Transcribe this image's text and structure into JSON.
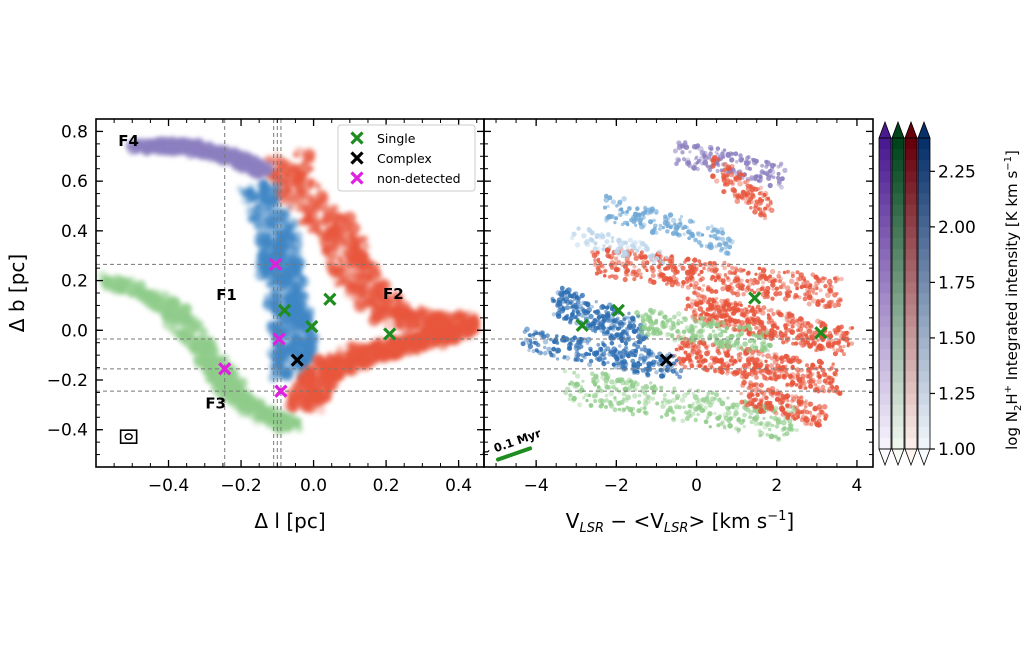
{
  "chart_data": [
    {
      "type": "scatter",
      "panel": "left",
      "xlabel": "Δ l [pc]",
      "ylabel": "Δ b [pc]",
      "xlim": [
        -0.6,
        0.47
      ],
      "ylim": [
        -0.55,
        0.85
      ],
      "xticks": [
        -0.4,
        -0.2,
        0.0,
        0.2,
        0.4
      ],
      "xtick_labels": [
        "−0.4",
        "−0.2",
        "0.0",
        "0.2",
        "0.4"
      ],
      "yticks": [
        -0.4,
        -0.2,
        0.0,
        0.2,
        0.4,
        0.6,
        0.8
      ],
      "ytick_labels": [
        "−0.4",
        "−0.2",
        "0.0",
        "0.2",
        "0.4",
        "0.6",
        "0.8"
      ],
      "legend_position": "top-right",
      "legend": [
        {
          "name": "Single",
          "color": "#1e8c1e"
        },
        {
          "name": "Complex",
          "color": "#000000"
        },
        {
          "name": "non-detected",
          "color": "#e020e0"
        }
      ],
      "filament_labels": [
        {
          "text": "F4",
          "x": -0.51,
          "y": 0.765
        },
        {
          "text": "F1",
          "x": -0.24,
          "y": 0.145
        },
        {
          "text": "F2",
          "x": 0.22,
          "y": 0.15
        },
        {
          "text": "F3",
          "x": -0.27,
          "y": -0.29
        }
      ],
      "filaments": [
        {
          "name": "F1",
          "color": "#3f86c5",
          "path": [
            [
              -0.15,
              0.58
            ],
            [
              -0.1,
              0.4
            ],
            [
              -0.1,
              0.3
            ],
            [
              -0.08,
              0.2
            ],
            [
              -0.07,
              0.08
            ],
            [
              -0.05,
              -0.06
            ],
            [
              -0.07,
              -0.18
            ]
          ],
          "width": 0.11
        },
        {
          "name": "F2",
          "color": "#e8553c",
          "path": [
            [
              -0.08,
              0.7
            ],
            [
              -0.02,
              0.52
            ],
            [
              0.08,
              0.35
            ],
            [
              0.12,
              0.2
            ],
            [
              0.22,
              0.06
            ],
            [
              0.36,
              0.02
            ],
            [
              0.4,
              0.03
            ]
          ],
          "width": 0.12
        },
        {
          "name": "F2",
          "color": "#e8553c",
          "path": [
            [
              0.4,
              0.0
            ],
            [
              0.25,
              -0.06
            ],
            [
              0.12,
              -0.1
            ],
            [
              0.02,
              -0.18
            ],
            [
              -0.03,
              -0.3
            ]
          ],
          "width": 0.1
        },
        {
          "name": "F3",
          "color": "#8fcc8a",
          "path": [
            [
              -0.56,
              0.2
            ],
            [
              -0.4,
              0.1
            ],
            [
              -0.32,
              -0.05
            ],
            [
              -0.26,
              -0.16
            ],
            [
              -0.22,
              -0.26
            ],
            [
              -0.14,
              -0.33
            ],
            [
              -0.06,
              -0.38
            ]
          ],
          "width": 0.07
        },
        {
          "name": "F4",
          "color": "#8c7fc0",
          "path": [
            [
              -0.48,
              0.74
            ],
            [
              -0.36,
              0.74
            ],
            [
              -0.22,
              0.7
            ],
            [
              -0.14,
              0.64
            ]
          ],
          "width": 0.06
        }
      ],
      "hlines": [
        0.265,
        -0.035,
        -0.155,
        -0.245
      ],
      "vlines": [
        -0.245,
        -0.11,
        -0.1,
        -0.09
      ],
      "points": [
        {
          "category": "Single",
          "x": -0.08,
          "y": 0.08
        },
        {
          "category": "Single",
          "x": -0.005,
          "y": 0.015
        },
        {
          "category": "Single",
          "x": 0.045,
          "y": 0.125
        },
        {
          "category": "Single",
          "x": 0.21,
          "y": -0.015
        },
        {
          "category": "Complex",
          "x": -0.045,
          "y": -0.12
        },
        {
          "category": "non-detected",
          "x": -0.105,
          "y": 0.265
        },
        {
          "category": "non-detected",
          "x": -0.095,
          "y": -0.035
        },
        {
          "category": "non-detected",
          "x": -0.245,
          "y": -0.155
        },
        {
          "category": "non-detected",
          "x": -0.09,
          "y": -0.245
        }
      ],
      "beam": {
        "x": -0.51,
        "y": -0.43
      }
    },
    {
      "type": "scatter",
      "panel": "right",
      "xlabel": "V",
      "xlabel_sub": "LSR",
      "xlabel_mid": " − <V",
      "xlabel_sub2": "LSR",
      "xlabel_tail": "> [km s",
      "xlabel_sup": "−1",
      "xlabel_end": "]",
      "xlim": [
        -5.3,
        4.4
      ],
      "ylim": [
        -0.55,
        0.85
      ],
      "xticks": [
        -4,
        -2,
        0,
        2,
        4
      ],
      "xtick_labels": [
        "−4",
        "−2",
        "0",
        "2",
        "4"
      ],
      "hlines": [
        0.265,
        -0.035,
        -0.155,
        -0.245
      ],
      "annotation": "~ 0.1 Myr",
      "arrow": {
        "from": [
          -4.95,
          -0.52
        ],
        "to": [
          -4.15,
          -0.475
        ],
        "color": "#1e8c1e"
      },
      "points": [
        {
          "category": "Single",
          "x": -2.85,
          "y": 0.02
        },
        {
          "category": "Single",
          "x": -1.95,
          "y": 0.08
        },
        {
          "category": "Single",
          "x": 1.45,
          "y": 0.13
        },
        {
          "category": "Single",
          "x": 3.1,
          "y": -0.01
        },
        {
          "category": "Complex",
          "x": -0.75,
          "y": -0.12
        }
      ]
    }
  ],
  "colorbar": {
    "label": "log N",
    "label_sub": "2",
    "label_mid": "H",
    "label_sup": "+",
    "label_tail": " Integrated intensity [K km s",
    "label_sup2": "−1",
    "label_end": "]",
    "range": [
      1.0,
      2.4
    ],
    "ticks": [
      1.0,
      1.25,
      1.5,
      1.75,
      2.0,
      2.25
    ],
    "tick_labels": [
      "1.00",
      "1.25",
      "1.50",
      "1.75",
      "2.00",
      "2.25"
    ],
    "colormaps": [
      {
        "name": "Purples",
        "low": "#fbfaff",
        "high": "#4a1a90"
      },
      {
        "name": "Greens",
        "low": "#f7fcf5",
        "high": "#00441b"
      },
      {
        "name": "Reds",
        "low": "#fff5f0",
        "high": "#67000d"
      },
      {
        "name": "Blues",
        "low": "#f7fbff",
        "high": "#08306b"
      }
    ]
  }
}
